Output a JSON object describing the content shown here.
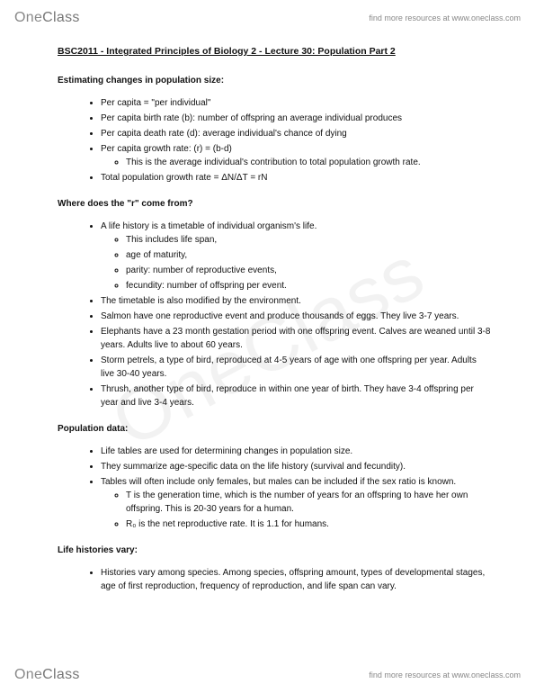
{
  "brand": {
    "part1": "One",
    "part2": "Class"
  },
  "resource_text": "find more resources at www.oneclass.com",
  "title": "BSC2011 - Integrated Principles of Biology 2 - Lecture 30: Population Part 2",
  "sections": [
    {
      "head": "Estimating changes in population size:",
      "items": [
        {
          "text": "Per capita = \"per individual\""
        },
        {
          "text": "Per capita birth rate (b): number of offspring an average individual produces"
        },
        {
          "text": "Per capita death rate (d): average individual's chance of dying"
        },
        {
          "text": "Per capita growth rate: (r) = (b-d)",
          "sub": [
            "This is the average individual's contribution to total population growth rate."
          ]
        },
        {
          "text": "Total population growth rate = ΔN/ΔT = rN"
        }
      ]
    },
    {
      "head": "Where does the \"r\" come from?",
      "items": [
        {
          "text": "A life history is a timetable of individual organism's life.",
          "sub": [
            "This includes life span,",
            "age of maturity,",
            "parity: number of reproductive events,",
            "fecundity: number of offspring per event."
          ]
        },
        {
          "text": "The timetable is also modified by the environment."
        },
        {
          "text": "Salmon have one reproductive event and produce thousands of eggs. They live 3-7 years."
        },
        {
          "text": "Elephants have a 23 month gestation period with one offspring event. Calves are weaned until 3-8 years. Adults live to about 60 years."
        },
        {
          "text": "Storm petrels, a type of bird, reproduced at 4-5 years of age with one offspring per year. Adults live 30-40 years."
        },
        {
          "text": "Thrush, another type of bird, reproduce in within one year of birth. They have 3-4 offspring per year and live 3-4 years."
        }
      ]
    },
    {
      "head": "Population data:",
      "items": [
        {
          "text": "Life tables are used for determining changes in population size."
        },
        {
          "text": "They summarize age-specific data on the life history (survival and fecundity)."
        },
        {
          "text": "Tables will often include only females, but males can be included if the sex ratio is known.",
          "sub": [
            "T is the generation time, which is the number of years for an offspring to have her own offspring. This is 20-30 years for a human.",
            "R₀ is the net reproductive rate. It is 1.1 for humans."
          ]
        }
      ]
    },
    {
      "head": "Life histories vary:",
      "items": [
        {
          "text": "Histories vary among species. Among species, offspring amount, types of developmental stages, age of first reproduction, frequency of reproduction, and life span can vary."
        }
      ]
    }
  ]
}
